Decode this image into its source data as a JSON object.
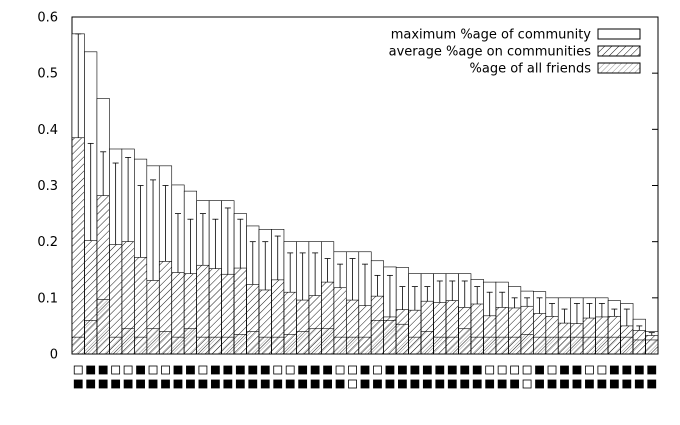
{
  "chart_data": {
    "type": "bar",
    "title": "",
    "xlabel": "",
    "ylabel": "",
    "ylim": [
      0,
      0.6
    ],
    "y_ticks": [
      "0",
      "0.1",
      "0.2",
      "0.3",
      "0.4",
      "0.5",
      "0.6"
    ],
    "grid": false,
    "legend_position": "top-right",
    "series": [
      {
        "name": "maximum %age of community",
        "fill": "empty",
        "values": [
          0.57,
          0.538,
          0.455,
          0.365,
          0.365,
          0.347,
          0.335,
          0.335,
          0.301,
          0.29,
          0.273,
          0.273,
          0.273,
          0.25,
          0.228,
          0.222,
          0.222,
          0.2,
          0.2,
          0.2,
          0.2,
          0.182,
          0.182,
          0.182,
          0.166,
          0.155,
          0.154,
          0.143,
          0.143,
          0.143,
          0.143,
          0.143,
          0.133,
          0.128,
          0.128,
          0.12,
          0.112,
          0.111,
          0.1,
          0.1,
          0.1,
          0.1,
          0.1,
          0.095,
          0.09,
          0.062,
          0.04
        ]
      },
      {
        "name": "average %age on communities",
        "fill": "dense-hatch",
        "values": [
          0.385,
          0.202,
          0.282,
          0.195,
          0.2,
          0.172,
          0.131,
          0.165,
          0.145,
          0.143,
          0.158,
          0.152,
          0.142,
          0.153,
          0.124,
          0.114,
          0.132,
          0.11,
          0.096,
          0.104,
          0.128,
          0.118,
          0.096,
          0.086,
          0.103,
          0.066,
          0.079,
          0.078,
          0.094,
          0.092,
          0.095,
          0.083,
          0.089,
          0.068,
          0.083,
          0.082,
          0.085,
          0.072,
          0.067,
          0.055,
          0.054,
          0.064,
          0.066,
          0.067,
          0.05,
          0.042,
          0.033
        ]
      },
      {
        "name": "%age of all friends",
        "fill": "sparse-hatch",
        "values": [
          0.03,
          0.06,
          0.097,
          0.03,
          0.045,
          0.03,
          0.045,
          0.04,
          0.03,
          0.045,
          0.03,
          0.03,
          0.03,
          0.035,
          0.04,
          0.03,
          0.03,
          0.035,
          0.04,
          0.045,
          0.045,
          0.03,
          0.03,
          0.03,
          0.06,
          0.06,
          0.053,
          0.03,
          0.04,
          0.03,
          0.03,
          0.045,
          0.03,
          0.03,
          0.03,
          0.03,
          0.035,
          0.03,
          0.03,
          0.03,
          0.03,
          0.03,
          0.03,
          0.03,
          0.03,
          0.025,
          0.025
        ]
      }
    ],
    "error_bars": [
      0.57,
      0.375,
      0.36,
      0.34,
      0.35,
      0.3,
      0.31,
      0.3,
      0.25,
      0.24,
      0.25,
      0.24,
      0.26,
      0.24,
      0.2,
      0.2,
      0.21,
      0.18,
      0.18,
      0.18,
      0.17,
      0.16,
      0.17,
      0.16,
      0.14,
      0.14,
      0.12,
      0.12,
      0.12,
      0.13,
      0.13,
      0.13,
      0.12,
      0.11,
      0.11,
      0.1,
      0.1,
      0.1,
      0.09,
      0.08,
      0.09,
      0.09,
      0.09,
      0.08,
      0.08,
      0.05,
      0.038
    ],
    "indicator_rows": [
      [
        0,
        1,
        1,
        0,
        0,
        1,
        0,
        0,
        1,
        1,
        0,
        1,
        1,
        1,
        1,
        1,
        0,
        0,
        1,
        1,
        1,
        0,
        0,
        1,
        0,
        1,
        1,
        1,
        1,
        1,
        1,
        1,
        1,
        0,
        0,
        0,
        0,
        1,
        0,
        1,
        1,
        0,
        0,
        1,
        1,
        1,
        1
      ],
      [
        1,
        1,
        1,
        1,
        1,
        1,
        1,
        1,
        1,
        1,
        1,
        1,
        1,
        1,
        1,
        1,
        1,
        1,
        1,
        1,
        1,
        1,
        0,
        1,
        1,
        1,
        1,
        1,
        1,
        1,
        1,
        1,
        1,
        1,
        1,
        1,
        0,
        1,
        1,
        1,
        1,
        1,
        1,
        1,
        1,
        1,
        1
      ]
    ]
  }
}
